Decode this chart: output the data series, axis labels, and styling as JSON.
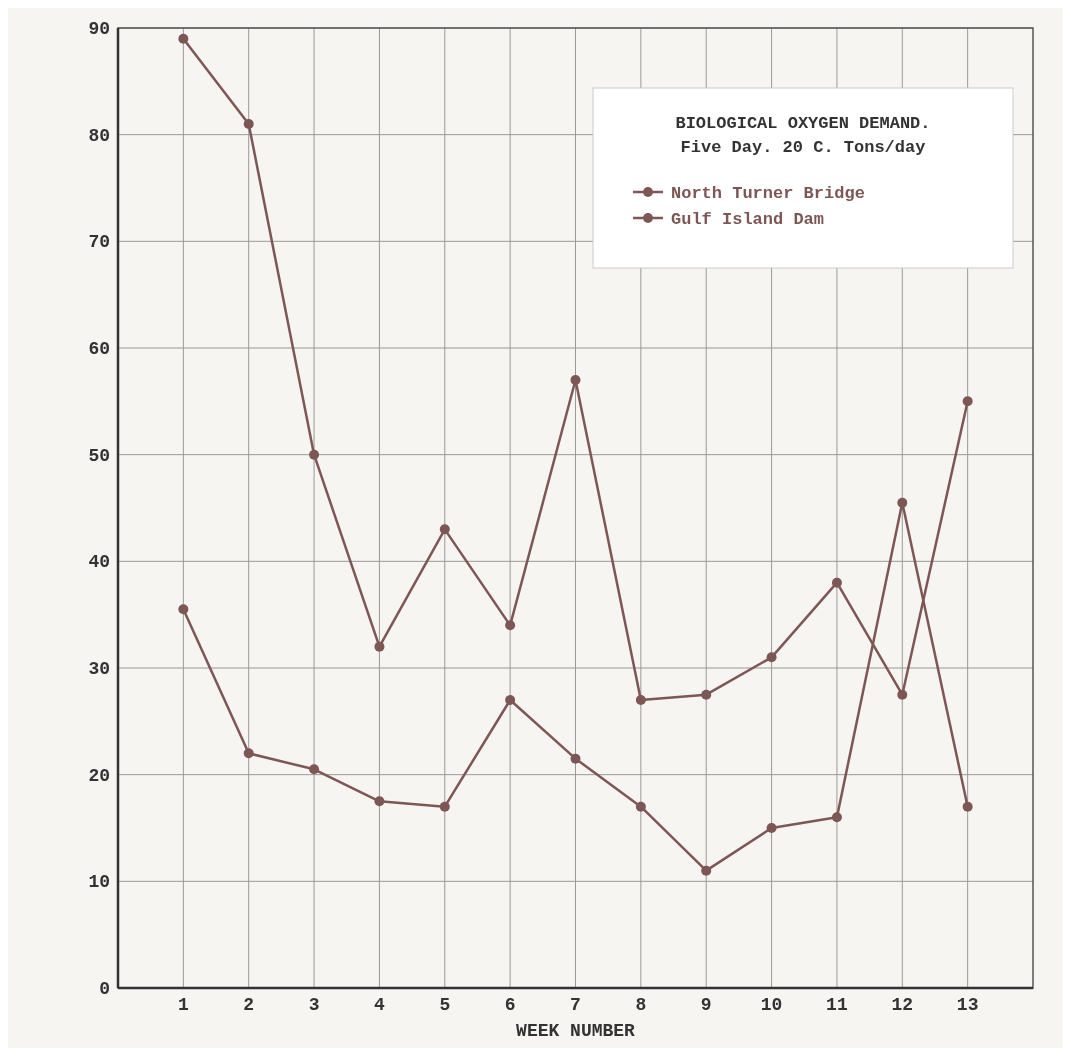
{
  "chart_data": {
    "type": "line",
    "title": "BIOLOGICAL OXYGEN DEMAND.",
    "subtitle": "Five Day. 20 C. Tons/day",
    "xlabel": "WEEK NUMBER",
    "x": [
      1,
      2,
      3,
      4,
      5,
      6,
      7,
      8,
      9,
      10,
      11,
      12,
      13
    ],
    "series": [
      {
        "name": "North Turner Bridge",
        "color": "#7d5656",
        "values": [
          89,
          81,
          50,
          32,
          43,
          34,
          57,
          27,
          27.5,
          31,
          38,
          27.5,
          55
        ]
      },
      {
        "name": "Gulf Island Dam",
        "color": "#7d5656",
        "values": [
          35.5,
          22,
          20.5,
          17.5,
          17,
          27,
          21.5,
          17,
          11,
          15,
          16,
          45.5,
          17
        ]
      }
    ],
    "xlim": [
      0,
      14
    ],
    "xticks": [
      1,
      2,
      3,
      4,
      5,
      6,
      7,
      8,
      9,
      10,
      11,
      12,
      13
    ],
    "ylim": [
      0,
      90
    ],
    "yticks": [
      0,
      10,
      20,
      30,
      40,
      50,
      60,
      70,
      80,
      90
    ],
    "grid": true,
    "legend": "top right",
    "marker": "circle",
    "line_style": "solid"
  }
}
